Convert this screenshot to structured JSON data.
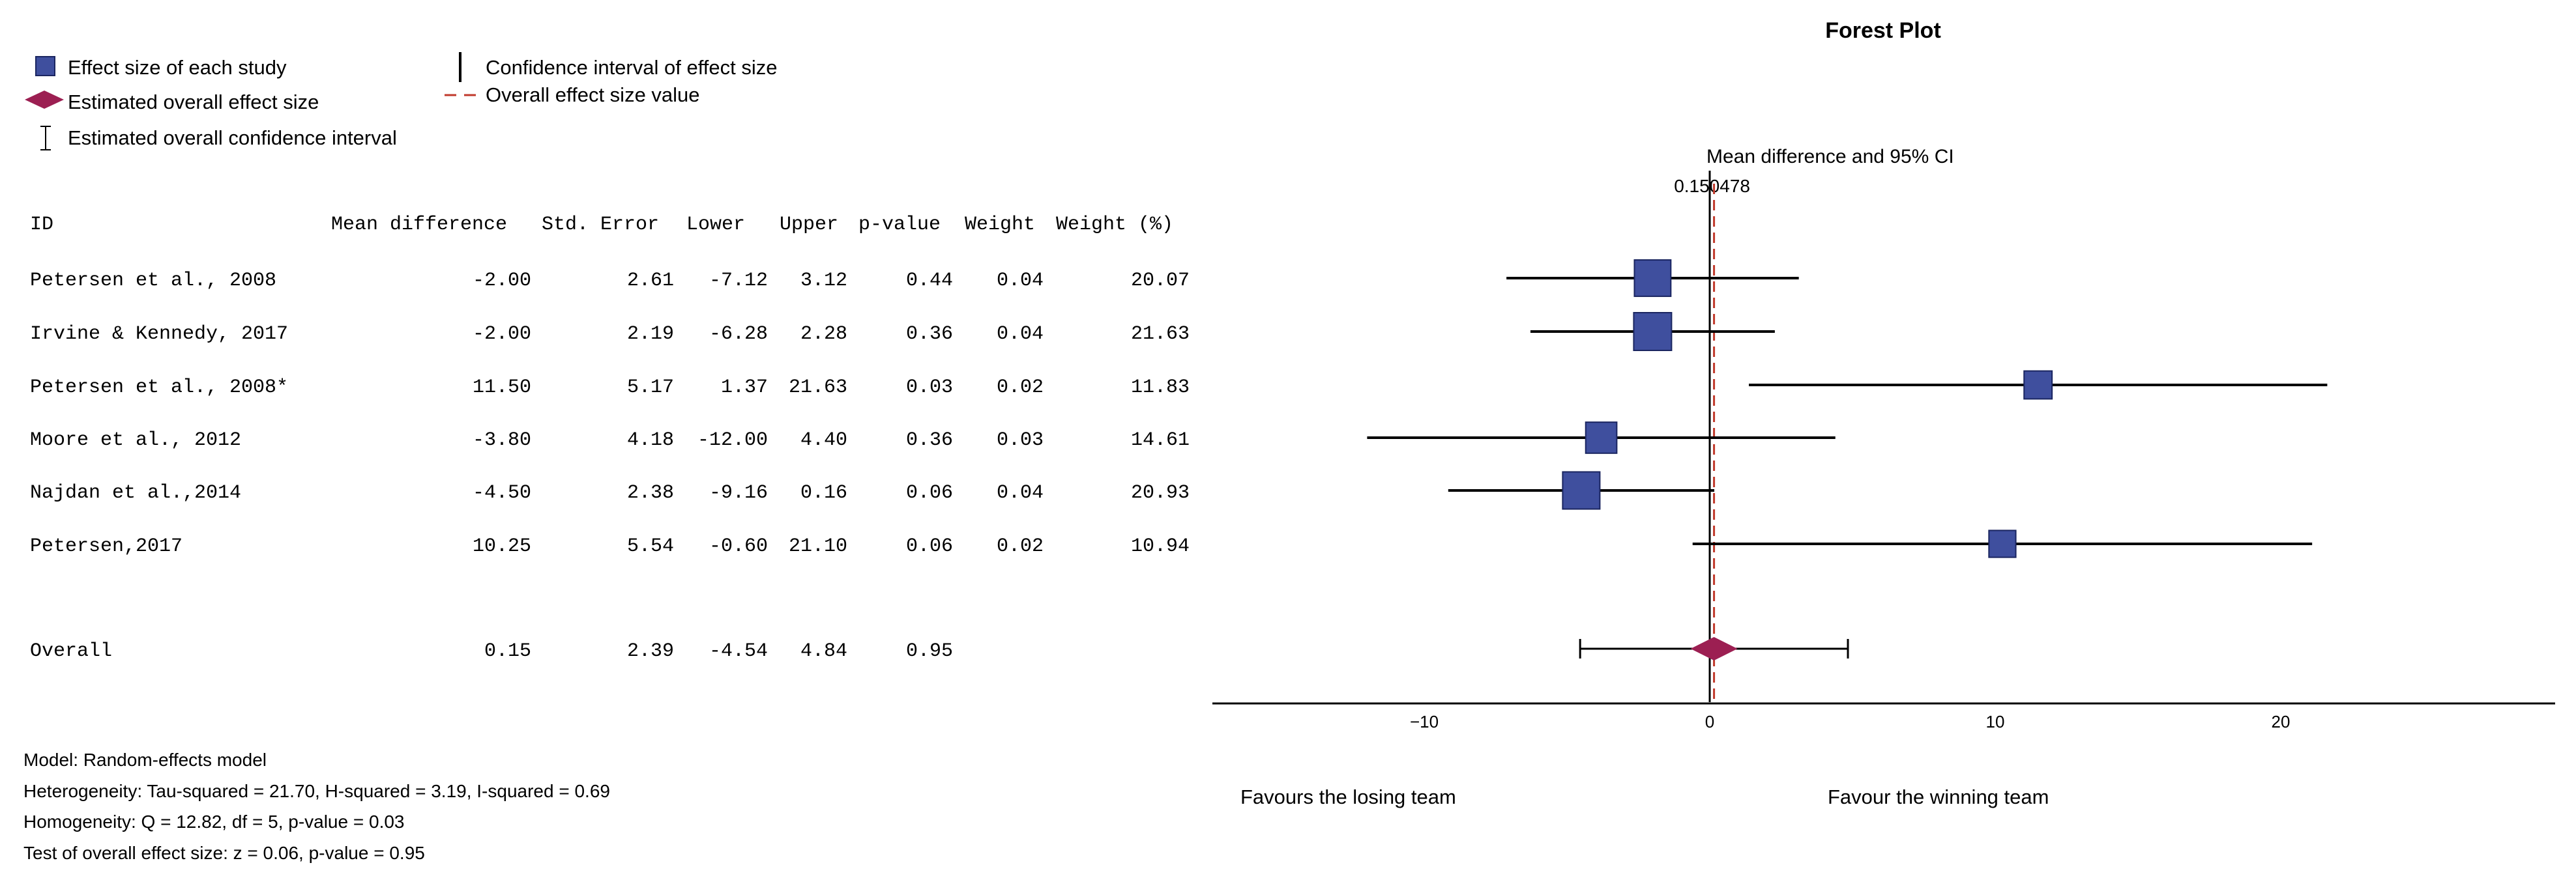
{
  "chart_data": {
    "type": "forest",
    "title": "Forest Plot",
    "axis_title": "Mean difference and 95% CI",
    "overall_value_label": "0.150478",
    "overall_value": 0.150478,
    "x_ticks": [
      -10,
      0,
      10,
      20
    ],
    "xlim": [
      -17.5,
      29.5
    ],
    "left_label": "Favours the losing team",
    "right_label": "Favour the winning team",
    "legend": {
      "study": "Effect size of each study",
      "overall": "Estimated overall effect size",
      "overall_ci": "Estimated overall confidence interval",
      "ci": "Confidence interval of effect size",
      "overall_line": "Overall effect size value"
    },
    "columns": [
      "ID",
      "Mean difference",
      "Std. Error",
      "Lower",
      "Upper",
      "p-value",
      "Weight",
      "Weight (%)"
    ],
    "studies": [
      {
        "id": "Petersen et al., 2008",
        "md": "-2.00",
        "se": "2.61",
        "lower": "-7.12",
        "upper": "3.12",
        "p": "0.44",
        "weight": "0.04",
        "weight_pct": "20.07"
      },
      {
        "id": "Irvine & Kennedy, 2017",
        "md": "-2.00",
        "se": "2.19",
        "lower": "-6.28",
        "upper": "2.28",
        "p": "0.36",
        "weight": "0.04",
        "weight_pct": "21.63"
      },
      {
        "id": "Petersen et al., 2008*",
        "md": "11.50",
        "se": "5.17",
        "lower": "1.37",
        "upper": "21.63",
        "p": "0.03",
        "weight": "0.02",
        "weight_pct": "11.83"
      },
      {
        "id": "Moore et al., 2012",
        "md": "-3.80",
        "se": "4.18",
        "lower": "-12.00",
        "upper": "4.40",
        "p": "0.36",
        "weight": "0.03",
        "weight_pct": "14.61"
      },
      {
        "id": " Najdan et al.,2014",
        "md": "-4.50",
        "se": "2.38",
        "lower": "-9.16",
        "upper": "0.16",
        "p": "0.06",
        "weight": "0.04",
        "weight_pct": "20.93"
      },
      {
        "id": "  Petersen,2017",
        "md": "10.25",
        "se": "5.54",
        "lower": "-0.60",
        "upper": "21.10",
        "p": "0.06",
        "weight": "0.02",
        "weight_pct": "10.94"
      }
    ],
    "overall": {
      "id": " Overall",
      "md": "0.15",
      "se": "2.39",
      "lower": "-4.54",
      "upper": "4.84",
      "p": "0.95"
    },
    "stats": [
      "Model: Random-effects model",
      "Heterogeneity: Tau-squared = 21.70, H-squared = 3.19, I-squared = 0.69",
      "Homogeneity: Q = 12.82, df = 5, p-value = 0.03",
      "Test of overall effect size: z = 0.06, p-value = 0.95"
    ]
  },
  "colors": {
    "square_fill": "#3f4f9e",
    "square_stroke": "#1a2560",
    "diamond": "#9c1f52",
    "dashed_line": "#c0392b",
    "line": "#000000"
  }
}
